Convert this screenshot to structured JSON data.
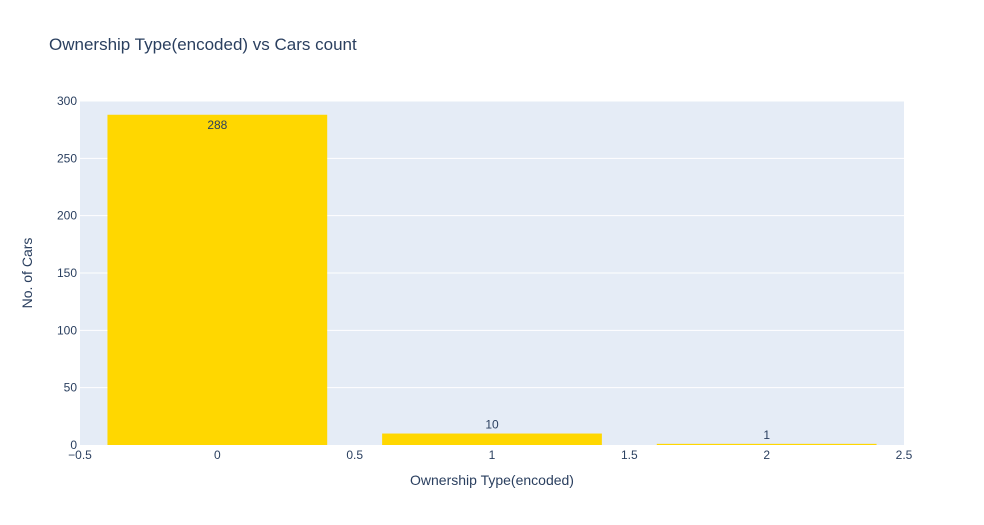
{
  "chart_data": {
    "type": "bar",
    "title": "Ownership Type(encoded) vs Cars count",
    "xlabel": "Ownership Type(encoded)",
    "ylabel": "No. of Cars",
    "x": [
      0,
      1,
      2
    ],
    "values": [
      288,
      10,
      1
    ],
    "data_labels": [
      "288",
      "10",
      "1"
    ],
    "xlim": [
      -0.5,
      2.5
    ],
    "ylim": [
      0,
      300
    ],
    "xticks": [
      -0.5,
      0,
      0.5,
      1,
      1.5,
      2,
      2.5
    ],
    "xtick_labels": [
      "−0.5",
      "0",
      "0.5",
      "1",
      "1.5",
      "2",
      "2.5"
    ],
    "yticks": [
      0,
      50,
      100,
      150,
      200,
      250,
      300
    ],
    "ytick_labels": [
      "0",
      "50",
      "100",
      "150",
      "200",
      "250",
      "300"
    ],
    "bar_width": 0.8,
    "grid": true,
    "legend": "none",
    "colors": {
      "bar": "#ffd700",
      "plot_background": "#e5ecf6",
      "grid": "#ffffff",
      "text": "#2a3f5f"
    }
  }
}
